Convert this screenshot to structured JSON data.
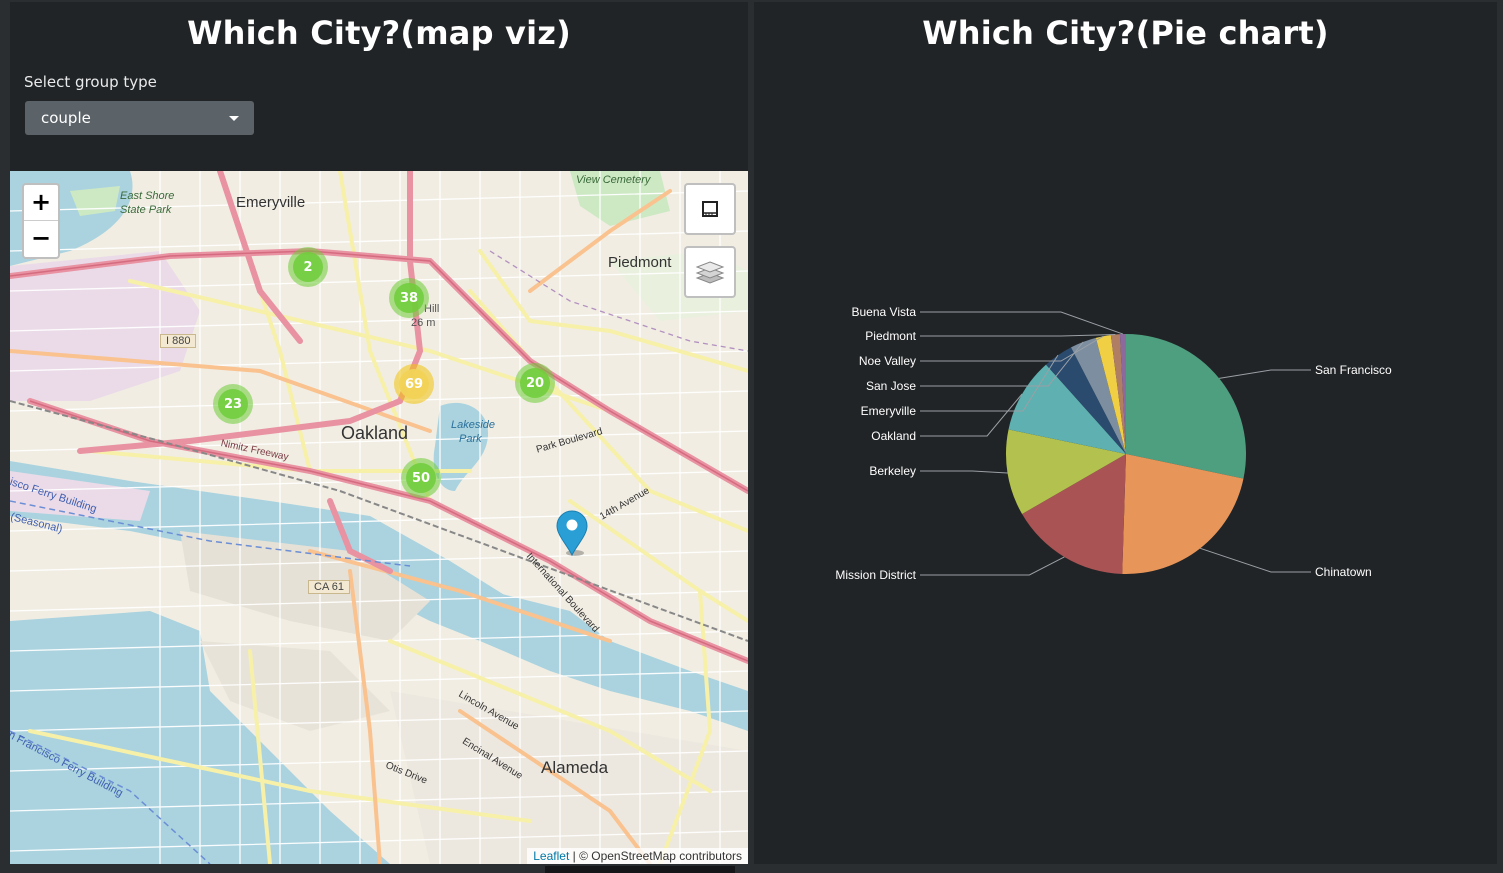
{
  "left_panel": {
    "title": "Which City?(map viz)",
    "select_label": "Select group type",
    "select_value": "couple"
  },
  "right_panel": {
    "title": "Which City?(Pie chart)"
  },
  "map": {
    "zoom_in": "+",
    "zoom_out": "−",
    "attribution_link": "Leaflet",
    "attribution_text": " | © OpenStreetMap contributors",
    "place_labels": {
      "emeryville": "Emeryville",
      "piedmont": "Piedmont",
      "oakland": "Oakland",
      "alameda": "Alameda",
      "east_shore": "East Shore",
      "state_park": "State Park",
      "view_cemetery": "View Cemetery",
      "lakeside": "Lakeside",
      "park": "Park",
      "i880": "I 880",
      "ca61": "CA 61",
      "park_boulevard": "Park Boulevard",
      "fourteenth_avenue": "14th Avenue",
      "international_boulevard": "International Boulevard",
      "lincoln_avenue": "Lincoln Avenue",
      "encinal_avenue": "Encinal Avenue",
      "otis_drive": "Otis Drive",
      "nimitz_freeway": "Nimitz Freeway",
      "ferry_building_1": "isco Ferry Building",
      "seasonal": "(Seasonal)",
      "ferry_building_2": "n Francisco Ferry Building",
      "hill": "Hill",
      "elevation": "26 m"
    },
    "clusters": [
      {
        "count": "2",
        "color": "green"
      },
      {
        "count": "38",
        "color": "green"
      },
      {
        "count": "69",
        "color": "yellow"
      },
      {
        "count": "20",
        "color": "green"
      },
      {
        "count": "23",
        "color": "green"
      },
      {
        "count": "50",
        "color": "green"
      }
    ],
    "marker_color": "#2a9fd6"
  },
  "chart_data": {
    "type": "pie",
    "slices": [
      {
        "label": "San Francisco",
        "value": 28,
        "color": "#4e9f7f"
      },
      {
        "label": "Chinatown",
        "value": 22,
        "color": "#e8955a"
      },
      {
        "label": "Mission District",
        "value": 16,
        "color": "#a95354"
      },
      {
        "label": "Berkeley",
        "value": 11.5,
        "color": "#b3c14e"
      },
      {
        "label": "Oakland",
        "value": 10,
        "color": "#5fb0b0"
      },
      {
        "label": "Emeryville",
        "value": 4,
        "color": "#2a4a6e"
      },
      {
        "label": "San Jose",
        "value": 3.5,
        "color": "#7c8ea0"
      },
      {
        "label": "Noe Valley",
        "value": 2,
        "color": "#f0cf45"
      },
      {
        "label": "Piedmont",
        "value": 1.2,
        "color": "#b07e63"
      },
      {
        "label": "Buena Vista",
        "value": 0.8,
        "color": "#8d6a9e"
      }
    ]
  }
}
